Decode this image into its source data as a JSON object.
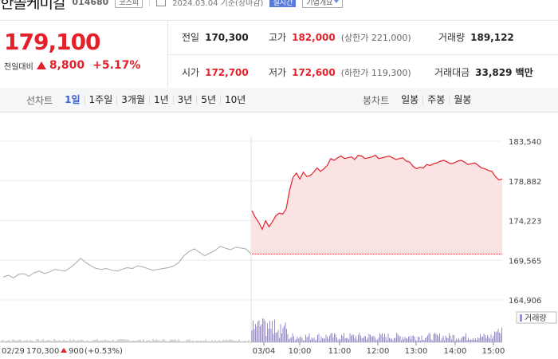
{
  "header": {
    "company_name": "한솔케미칼",
    "code": "014680",
    "market": "코스피",
    "date": "2024.03.04 기준(장마감)",
    "realtime_label": "실시간",
    "overview_label": "기업개요"
  },
  "quote": {
    "price": "179,100",
    "change_label": "전일대비",
    "change_value": "8,800",
    "change_percent": "+5.17%",
    "prev_close": {
      "label": "전일",
      "value": "170,300"
    },
    "high": {
      "label": "고가",
      "value": "182,000",
      "sub": "(상한가 221,000)"
    },
    "volume": {
      "label": "거래량",
      "value": "189,122"
    },
    "open": {
      "label": "시가",
      "value": "172,700"
    },
    "low": {
      "label": "저가",
      "value": "172,600",
      "sub": "(하한가 119,300)"
    },
    "amount": {
      "label": "거래대금",
      "value": "33,829 백만"
    }
  },
  "chart_tabs": {
    "line_label": "선차트",
    "line_tabs": [
      "1일",
      "1주일",
      "3개월",
      "1년",
      "3년",
      "5년",
      "10년"
    ],
    "active_tab": "1일",
    "candle_label": "봉차트",
    "candle_tabs": [
      "일봉",
      "주봉",
      "월봉"
    ]
  },
  "colors": {
    "up": "#e4212b",
    "fill": "#fbe3e3",
    "prev_line": "#aaaaaa",
    "volume": "#9b8ec9"
  },
  "chart_data": {
    "type": "line",
    "y_ticks": [
      "183,540",
      "178,882",
      "174,223",
      "169,565",
      "164,906"
    ],
    "ylim": [
      164906,
      183540
    ],
    "reference_value": 170300,
    "x_ticks": [
      "03/04",
      "10:00",
      "11:00",
      "12:00",
      "13:00",
      "14:00",
      "15:00"
    ],
    "prev_day_footer": {
      "date": "02/29",
      "close": "170,300",
      "change": "900",
      "pct": "(+0.53%)"
    },
    "volume_legend": "거래량",
    "prev_day_series": [
      167600,
      167800,
      167500,
      167900,
      168000,
      167700,
      168100,
      168300,
      168000,
      168200,
      168500,
      168400,
      168300,
      168700,
      169200,
      169800,
      169300,
      168900,
      168600,
      168500,
      168600,
      168400,
      168300,
      168500,
      168700,
      168600,
      168900,
      168800,
      168600,
      168400,
      168500,
      168600,
      168700,
      168900,
      169300,
      170100,
      170600,
      170900,
      170500,
      170100,
      170400,
      170700,
      171200,
      171000,
      170800,
      171100,
      171000,
      170900,
      170300
    ],
    "today_series": [
      175400,
      174600,
      174000,
      173200,
      174200,
      173500,
      174100,
      174800,
      175100,
      175000,
      175600,
      177800,
      179300,
      179800,
      179100,
      179900,
      179400,
      179500,
      179900,
      180400,
      180000,
      180300,
      180700,
      181500,
      181300,
      181600,
      181800,
      181500,
      181600,
      181700,
      181400,
      181900,
      181800,
      181500,
      181600,
      181700,
      181900,
      181500,
      181600,
      181700,
      181800,
      181600,
      181400,
      181500,
      181600,
      181200,
      181100,
      180600,
      180300,
      180500,
      180400,
      180800,
      180700,
      180900,
      181000,
      181200,
      181300,
      181100,
      180900,
      181000,
      181200,
      181300,
      181100,
      180800,
      180900,
      181000,
      180700,
      180400,
      180300,
      180100,
      180000,
      179400,
      179000,
      179100
    ]
  }
}
